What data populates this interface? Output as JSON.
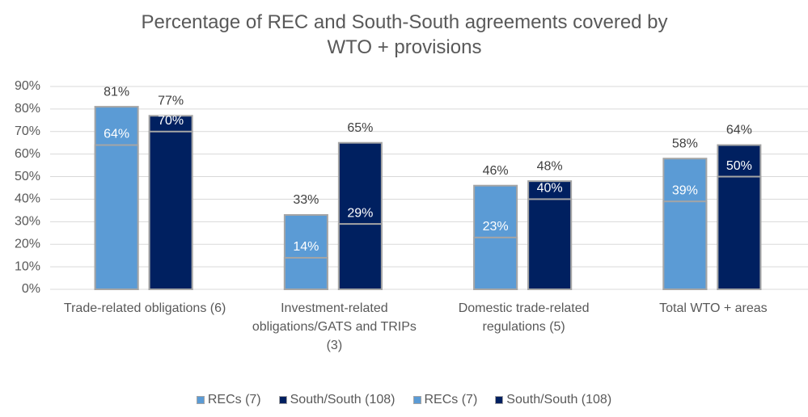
{
  "chart_data": {
    "type": "overlap-bar",
    "title": "Percentage of REC and South-South agreements covered by WTO + provisions",
    "categories": [
      "Trade-related obligations (6)",
      "Investment-related obligations/GATS and TRIPs (3)",
      "Domestic trade-related regulations (5)",
      "Total WTO + areas"
    ],
    "series": [
      {
        "name": "RECs (7)",
        "color": "#5b9bd5",
        "values": [
          64,
          14,
          23,
          39
        ],
        "value_labels": [
          "64%",
          "14%",
          "23%",
          "39%"
        ]
      },
      {
        "name": "South/South (108)",
        "color": "#002060",
        "values": [
          70,
          29,
          40,
          50
        ],
        "value_labels": [
          "70%",
          "29%",
          "40%",
          "50%"
        ]
      },
      {
        "name": "RECs (7)",
        "color": "#5b9bd5",
        "values": [
          81,
          33,
          46,
          58
        ],
        "value_labels": [
          "81%",
          "33%",
          "46%",
          "58%"
        ]
      },
      {
        "name": "South/South (108)",
        "color": "#002060",
        "values": [
          77,
          65,
          48,
          64
        ],
        "value_labels": [
          "77%",
          "65%",
          "48%",
          "64%"
        ]
      }
    ],
    "ylim": [
      0,
      90
    ],
    "yticks": [
      {
        "value": 0,
        "label": "0%"
      },
      {
        "value": 10,
        "label": "10%"
      },
      {
        "value": 20,
        "label": "20%"
      },
      {
        "value": 30,
        "label": "30%"
      },
      {
        "value": 40,
        "label": "40%"
      },
      {
        "value": 50,
        "label": "50%"
      },
      {
        "value": 60,
        "label": "60%"
      },
      {
        "value": 70,
        "label": "70%"
      },
      {
        "value": 80,
        "label": "80%"
      },
      {
        "value": 90,
        "label": "90%"
      }
    ],
    "grid": true,
    "legend": "bottom"
  }
}
